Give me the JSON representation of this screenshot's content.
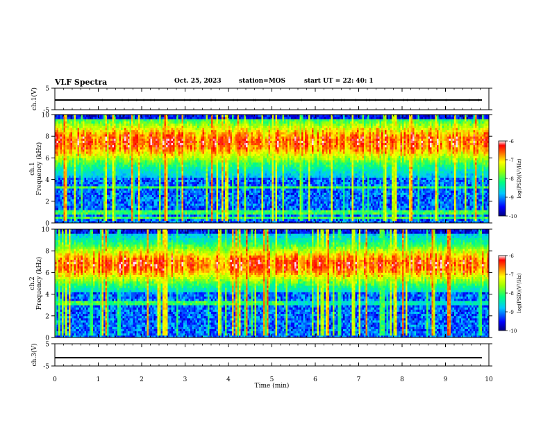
{
  "header": {
    "title": "VLF Spectra",
    "date": "Oct. 25, 2023",
    "station": "station=MOS",
    "start": "start UT =  22: 40: 1"
  },
  "chart_data": [
    {
      "type": "line",
      "panel": "ch1-waveform",
      "ylabel": "ch.1(V)",
      "ylim": [
        -5,
        5
      ],
      "yticks": [
        "5",
        "-5"
      ],
      "x": [
        0,
        10
      ],
      "series": [
        {
          "values": [
            -0.5,
            -0.5
          ]
        }
      ]
    },
    {
      "type": "heatmap",
      "panel": "ch1-spectrogram",
      "ylabel": "ch.1\nFrequency (kHz)",
      "ylim": [
        0,
        10
      ],
      "yticks": [
        "0",
        "2",
        "4",
        "6",
        "8",
        "10"
      ],
      "xlim": [
        0,
        10
      ],
      "colorbar": {
        "label": "log(PSD)(V²/Hz)",
        "range": [
          -10,
          -6
        ],
        "ticks": [
          "-6",
          "-7",
          "-8",
          "-9",
          "-10"
        ]
      },
      "features": {
        "max_intensity_band_khz": [
          6,
          9
        ],
        "strong_line_khz": [
          3.3,
          1.0,
          0.5
        ],
        "bursts": "frequent vertical broadband impulses 0-10 kHz"
      }
    },
    {
      "type": "heatmap",
      "panel": "ch2-spectrogram",
      "ylabel": "ch.2\nFrequency (kHz)",
      "ylim": [
        0,
        10
      ],
      "yticks": [
        "0",
        "2",
        "4",
        "6",
        "8",
        "10"
      ],
      "xlim": [
        0,
        10
      ],
      "colorbar": {
        "label": "log(PSD)(V²/Hz)",
        "range": [
          -10,
          -6
        ],
        "ticks": [
          "-6",
          "-7",
          "-8",
          "-9",
          "-10"
        ]
      },
      "features": {
        "max_intensity_band_khz": [
          5.5,
          8
        ],
        "strong_line_khz": [
          3.2
        ],
        "strong_line_until_min": 5.3,
        "bursts": "frequent vertical broadband impulses 0-10 kHz"
      }
    },
    {
      "type": "line",
      "panel": "ch3-waveform",
      "ylabel": "ch.3(V)",
      "xlabel": "Time  (min)",
      "ylim": [
        -5,
        5
      ],
      "yticks": [
        "5",
        "-5"
      ],
      "xlim": [
        0,
        10
      ],
      "xticks": [
        "0",
        "1",
        "2",
        "3",
        "4",
        "5",
        "6",
        "7",
        "8",
        "9",
        "10"
      ],
      "x": [
        0,
        10
      ],
      "series": [
        {
          "values": [
            -1.3,
            -1.3
          ]
        }
      ]
    }
  ]
}
